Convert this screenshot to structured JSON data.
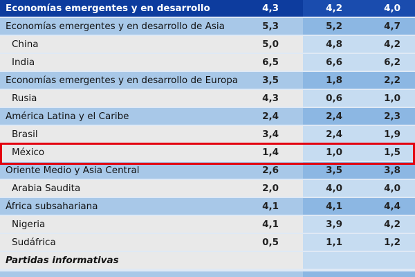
{
  "header": {
    "label": "Economías emergentes y en desarrollo",
    "values": [
      "4,3",
      "4,2",
      "4,0"
    ]
  },
  "rows": [
    {
      "label": "Economías emergentes y en desarrollo de Asia",
      "values": [
        "5,3",
        "5,2",
        "4,7"
      ],
      "level": "group"
    },
    {
      "label": "China",
      "values": [
        "5,0",
        "4,8",
        "4,2"
      ],
      "level": "country"
    },
    {
      "label": "India",
      "values": [
        "6,5",
        "6,6",
        "6,2"
      ],
      "level": "country"
    },
    {
      "label": "Economías emergentes y en desarrollo de Europa",
      "values": [
        "3,5",
        "1,8",
        "2,2"
      ],
      "level": "group"
    },
    {
      "label": "Rusia",
      "values": [
        "4,3",
        "0,6",
        "1,0"
      ],
      "level": "country"
    },
    {
      "label": "América Latina y el Caribe",
      "values": [
        "2,4",
        "2,4",
        "2,3"
      ],
      "level": "group"
    },
    {
      "label": "Brasil",
      "values": [
        "3,4",
        "2,4",
        "1,9"
      ],
      "level": "country"
    },
    {
      "label": "México",
      "values": [
        "1,4",
        "1,0",
        "1,5"
      ],
      "level": "country",
      "highlighted": true
    },
    {
      "label": "Oriente Medio y Asia Central",
      "values": [
        "2,6",
        "3,5",
        "3,8"
      ],
      "level": "group"
    },
    {
      "label": "Arabia Saudita",
      "values": [
        "2,0",
        "4,0",
        "4,0"
      ],
      "level": "country"
    },
    {
      "label": "África subsahariana",
      "values": [
        "4,1",
        "4,1",
        "4,4"
      ],
      "level": "group"
    },
    {
      "label": "Nigeria",
      "values": [
        "4,1",
        "3,9",
        "4,2"
      ],
      "level": "country"
    },
    {
      "label": "Sudáfrica",
      "values": [
        "0,5",
        "1,1",
        "1,2"
      ],
      "level": "country"
    },
    {
      "label": "Partidas informativas",
      "values": [
        "",
        "",
        ""
      ],
      "level": "section"
    }
  ],
  "colors": {
    "header": "#0d3c9e",
    "row_blue": "#a8c8e8",
    "row_gray": "#e9e9e9",
    "highlight_border": "#e3000f"
  }
}
